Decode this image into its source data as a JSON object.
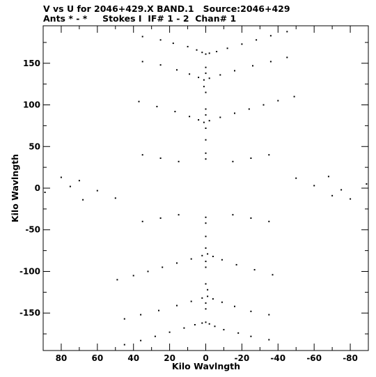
{
  "chart_data": {
    "type": "scatter",
    "title": "V vs U for 2046+429.X BAND.1   Source:2046+429",
    "subtitle": "Ants * - *     Stokes I  IF# 1 - 2  Chan# 1",
    "xlabel": "Kilo Wavlngth",
    "ylabel": "Kilo Wavlngth",
    "xlim": [
      90,
      -90
    ],
    "ylim": [
      -195,
      195
    ],
    "xticks": [
      80,
      60,
      40,
      20,
      0,
      -20,
      -40,
      -60,
      -80
    ],
    "xtick_labels": [
      "80",
      "60",
      "40",
      "20",
      "0",
      "-20",
      "-40",
      "-60",
      "-80"
    ],
    "yticks": [
      150,
      100,
      50,
      0,
      -50,
      -100,
      -150
    ],
    "ytick_labels": [
      "150",
      "100",
      "50",
      "0",
      "-50",
      "-100",
      "-150"
    ],
    "point_color": "#000000",
    "series": [
      {
        "values": [
          [
            35,
            182
          ],
          [
            25,
            178
          ],
          [
            18,
            174
          ],
          [
            10,
            170
          ],
          [
            5,
            166
          ],
          [
            2,
            163
          ],
          [
            0,
            161
          ],
          [
            -2,
            162
          ],
          [
            -6,
            164
          ],
          [
            -12,
            168
          ],
          [
            -20,
            173
          ],
          [
            -28,
            178
          ],
          [
            -36,
            183
          ],
          [
            -45,
            188
          ],
          [
            35,
            152
          ],
          [
            25,
            148
          ],
          [
            16,
            142
          ],
          [
            9,
            137
          ],
          [
            4,
            133
          ],
          [
            1,
            130
          ],
          [
            -2,
            132
          ],
          [
            -8,
            136
          ],
          [
            -16,
            141
          ],
          [
            -26,
            147
          ],
          [
            -36,
            152
          ],
          [
            -45,
            157
          ],
          [
            37,
            104
          ],
          [
            27,
            98
          ],
          [
            17,
            92
          ],
          [
            9,
            86
          ],
          [
            4,
            82
          ],
          [
            1,
            79
          ],
          [
            -2,
            81
          ],
          [
            -8,
            85
          ],
          [
            -16,
            90
          ],
          [
            -24,
            95
          ],
          [
            -32,
            100
          ],
          [
            -40,
            105
          ],
          [
            -49,
            110
          ],
          [
            -35,
            -182
          ],
          [
            -25,
            -178
          ],
          [
            -18,
            -174
          ],
          [
            -10,
            -170
          ],
          [
            -5,
            -166
          ],
          [
            -2,
            -163
          ],
          [
            0,
            -161
          ],
          [
            2,
            -162
          ],
          [
            6,
            -164
          ],
          [
            12,
            -168
          ],
          [
            20,
            -173
          ],
          [
            28,
            -178
          ],
          [
            36,
            -183
          ],
          [
            45,
            -188
          ],
          [
            -35,
            -152
          ],
          [
            -25,
            -148
          ],
          [
            -16,
            -142
          ],
          [
            -9,
            -137
          ],
          [
            -4,
            -133
          ],
          [
            -1,
            -130
          ],
          [
            2,
            -132
          ],
          [
            8,
            -136
          ],
          [
            16,
            -141
          ],
          [
            26,
            -147
          ],
          [
            36,
            -152
          ],
          [
            45,
            -157
          ],
          [
            -37,
            -104
          ],
          [
            -27,
            -98
          ],
          [
            -17,
            -92
          ],
          [
            -9,
            -86
          ],
          [
            -4,
            -82
          ],
          [
            -1,
            -79
          ],
          [
            2,
            -81
          ],
          [
            8,
            -85
          ],
          [
            16,
            -90
          ],
          [
            24,
            -95
          ],
          [
            32,
            -100
          ],
          [
            40,
            -105
          ],
          [
            49,
            -110
          ],
          [
            0,
            145
          ],
          [
            0,
            138
          ],
          [
            1,
            122
          ],
          [
            0,
            115
          ],
          [
            0,
            95
          ],
          [
            0,
            88
          ],
          [
            0,
            72
          ],
          [
            0,
            58
          ],
          [
            0,
            42
          ],
          [
            0,
            35
          ],
          [
            0,
            -145
          ],
          [
            0,
            -138
          ],
          [
            -1,
            -122
          ],
          [
            0,
            -115
          ],
          [
            0,
            -95
          ],
          [
            0,
            -88
          ],
          [
            0,
            -72
          ],
          [
            0,
            -58
          ],
          [
            0,
            -42
          ],
          [
            0,
            -35
          ],
          [
            -89,
            5
          ],
          [
            -75,
            -2
          ],
          [
            -70,
            -9
          ],
          [
            -60,
            3
          ],
          [
            -80,
            -13
          ],
          [
            -68,
            14
          ],
          [
            -50,
            12
          ],
          [
            89,
            -5
          ],
          [
            75,
            2
          ],
          [
            70,
            9
          ],
          [
            60,
            -3
          ],
          [
            80,
            13
          ],
          [
            68,
            -14
          ],
          [
            50,
            -12
          ],
          [
            35,
            40
          ],
          [
            25,
            36
          ],
          [
            15,
            32
          ],
          [
            -35,
            -40
          ],
          [
            -25,
            -36
          ],
          [
            -15,
            -32
          ],
          [
            -35,
            40
          ],
          [
            -25,
            36
          ],
          [
            -15,
            32
          ],
          [
            35,
            -40
          ],
          [
            25,
            -36
          ],
          [
            15,
            -32
          ]
        ]
      }
    ]
  }
}
